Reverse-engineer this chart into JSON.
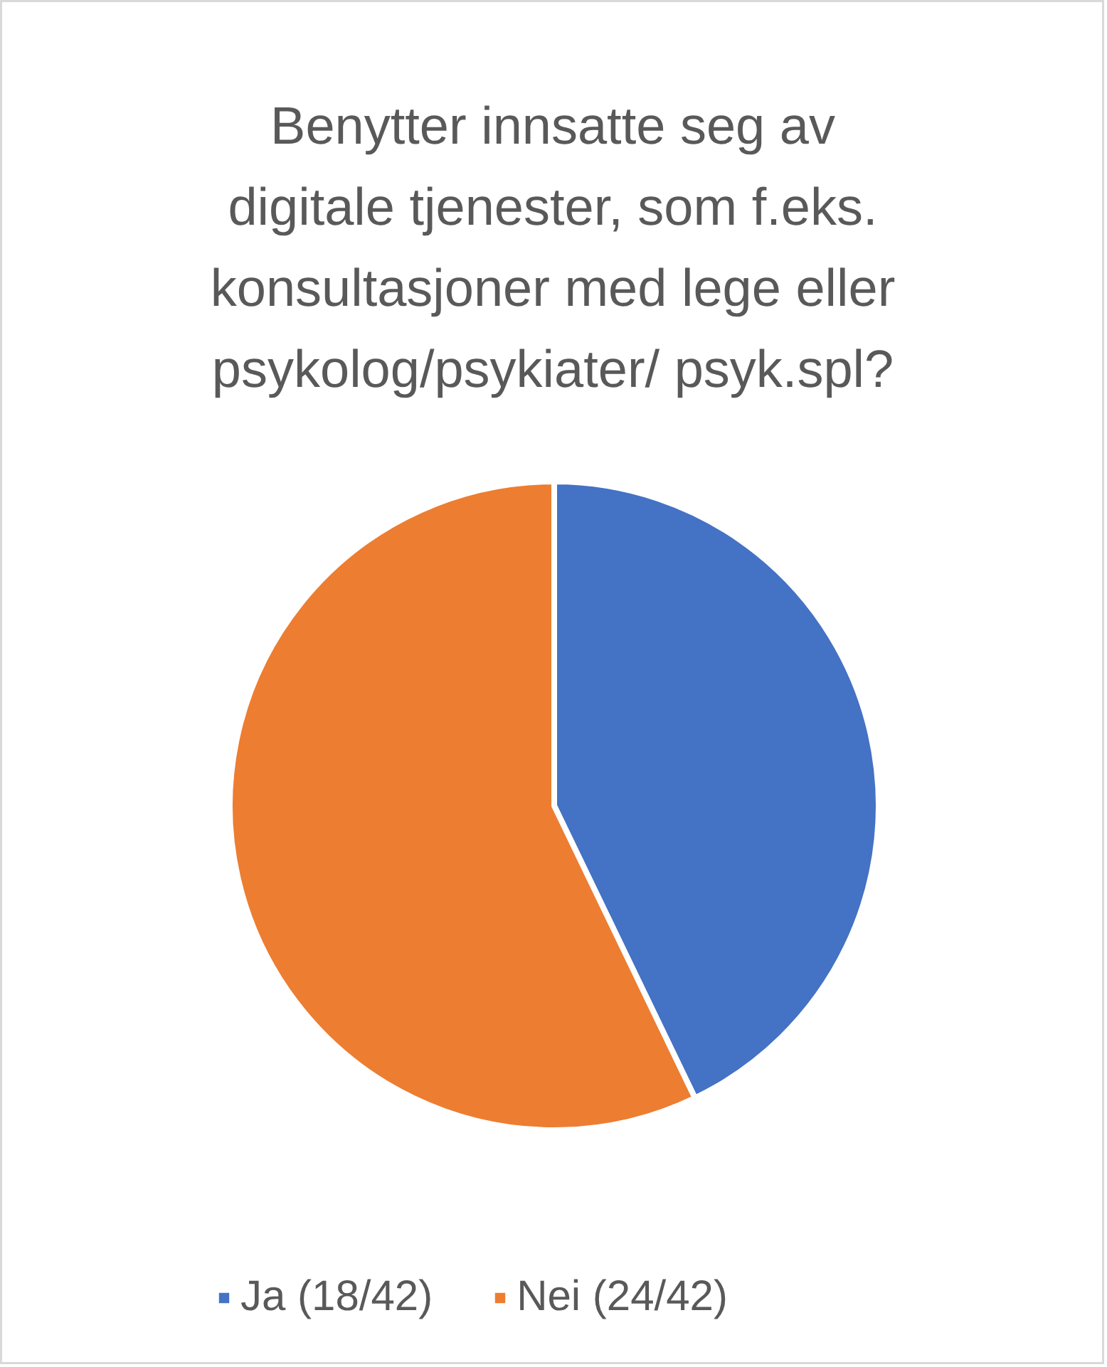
{
  "chart_data": {
    "type": "pie",
    "title": "Benytter innsatte seg av digitale tjenester, som f.eks. konsultasjoner med lege eller psykolog/psykiater/ psyk.spl?",
    "categories": [
      "Ja (18/42)",
      "Nei (24/42)"
    ],
    "values": [
      18,
      24
    ],
    "colors": [
      "#4472c4",
      "#ed7d31"
    ],
    "legend": "bottom"
  }
}
